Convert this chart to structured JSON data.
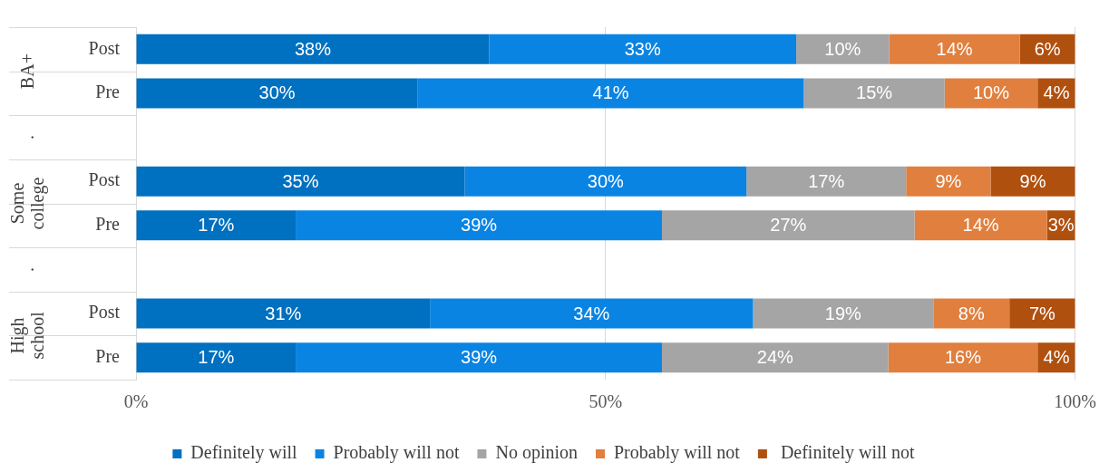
{
  "chart_data": {
    "type": "bar",
    "orientation": "horizontal",
    "stacked": true,
    "categories": [
      "Post",
      "Pre",
      null,
      "Post",
      "Pre",
      null,
      "Post",
      "Pre"
    ],
    "series": [
      {
        "name": "Definitely will",
        "color": "#0070c0",
        "values": [
          37.6,
          30.0,
          null,
          35.0,
          17.0,
          null,
          31.3,
          17.0
        ],
        "value_labels": [
          "38%",
          "30%",
          null,
          "35%",
          "17%",
          null,
          "31%",
          "17%"
        ]
      },
      {
        "name": "Probably will not",
        "color": "#0a84e3",
        "values": [
          32.7,
          41.1,
          null,
          30.0,
          39.0,
          null,
          34.4,
          39.0
        ],
        "value_labels": [
          "33%",
          "41%",
          null,
          "30%",
          "39%",
          null,
          "34%",
          "39%"
        ]
      },
      {
        "name": "No opinion",
        "color": "#a5a5a5",
        "values": [
          9.9,
          15.0,
          null,
          17.0,
          26.9,
          null,
          19.2,
          24.1
        ],
        "value_labels": [
          "10%",
          "15%",
          null,
          "17%",
          "27%",
          null,
          "19%",
          "24%"
        ]
      },
      {
        "name": "Probably will not",
        "color": "#e07f3e",
        "values": [
          13.9,
          9.9,
          null,
          9.0,
          14.1,
          null,
          8.1,
          15.9
        ],
        "value_labels": [
          "14%",
          "10%",
          null,
          "9%",
          "14%",
          null,
          "8%",
          "16%"
        ]
      },
      {
        "name": " Definitely will not",
        "color": "#b0500f",
        "values": [
          5.9,
          4.0,
          null,
          9.0,
          3.0,
          null,
          7.0,
          4.0
        ],
        "value_labels": [
          "6%",
          "4%",
          null,
          "9%",
          "3%",
          null,
          "7%",
          "4%"
        ]
      }
    ],
    "xlim": [
      0,
      100
    ],
    "xticks": [
      {
        "value": 0,
        "label": "0%"
      },
      {
        "value": 50,
        "label": "50%"
      },
      {
        "value": 100,
        "label": "100%"
      }
    ],
    "grid": "x",
    "legend": "bottom",
    "annotations": [
      "BA+",
      ".",
      "Some college",
      ".",
      "High school"
    ]
  }
}
